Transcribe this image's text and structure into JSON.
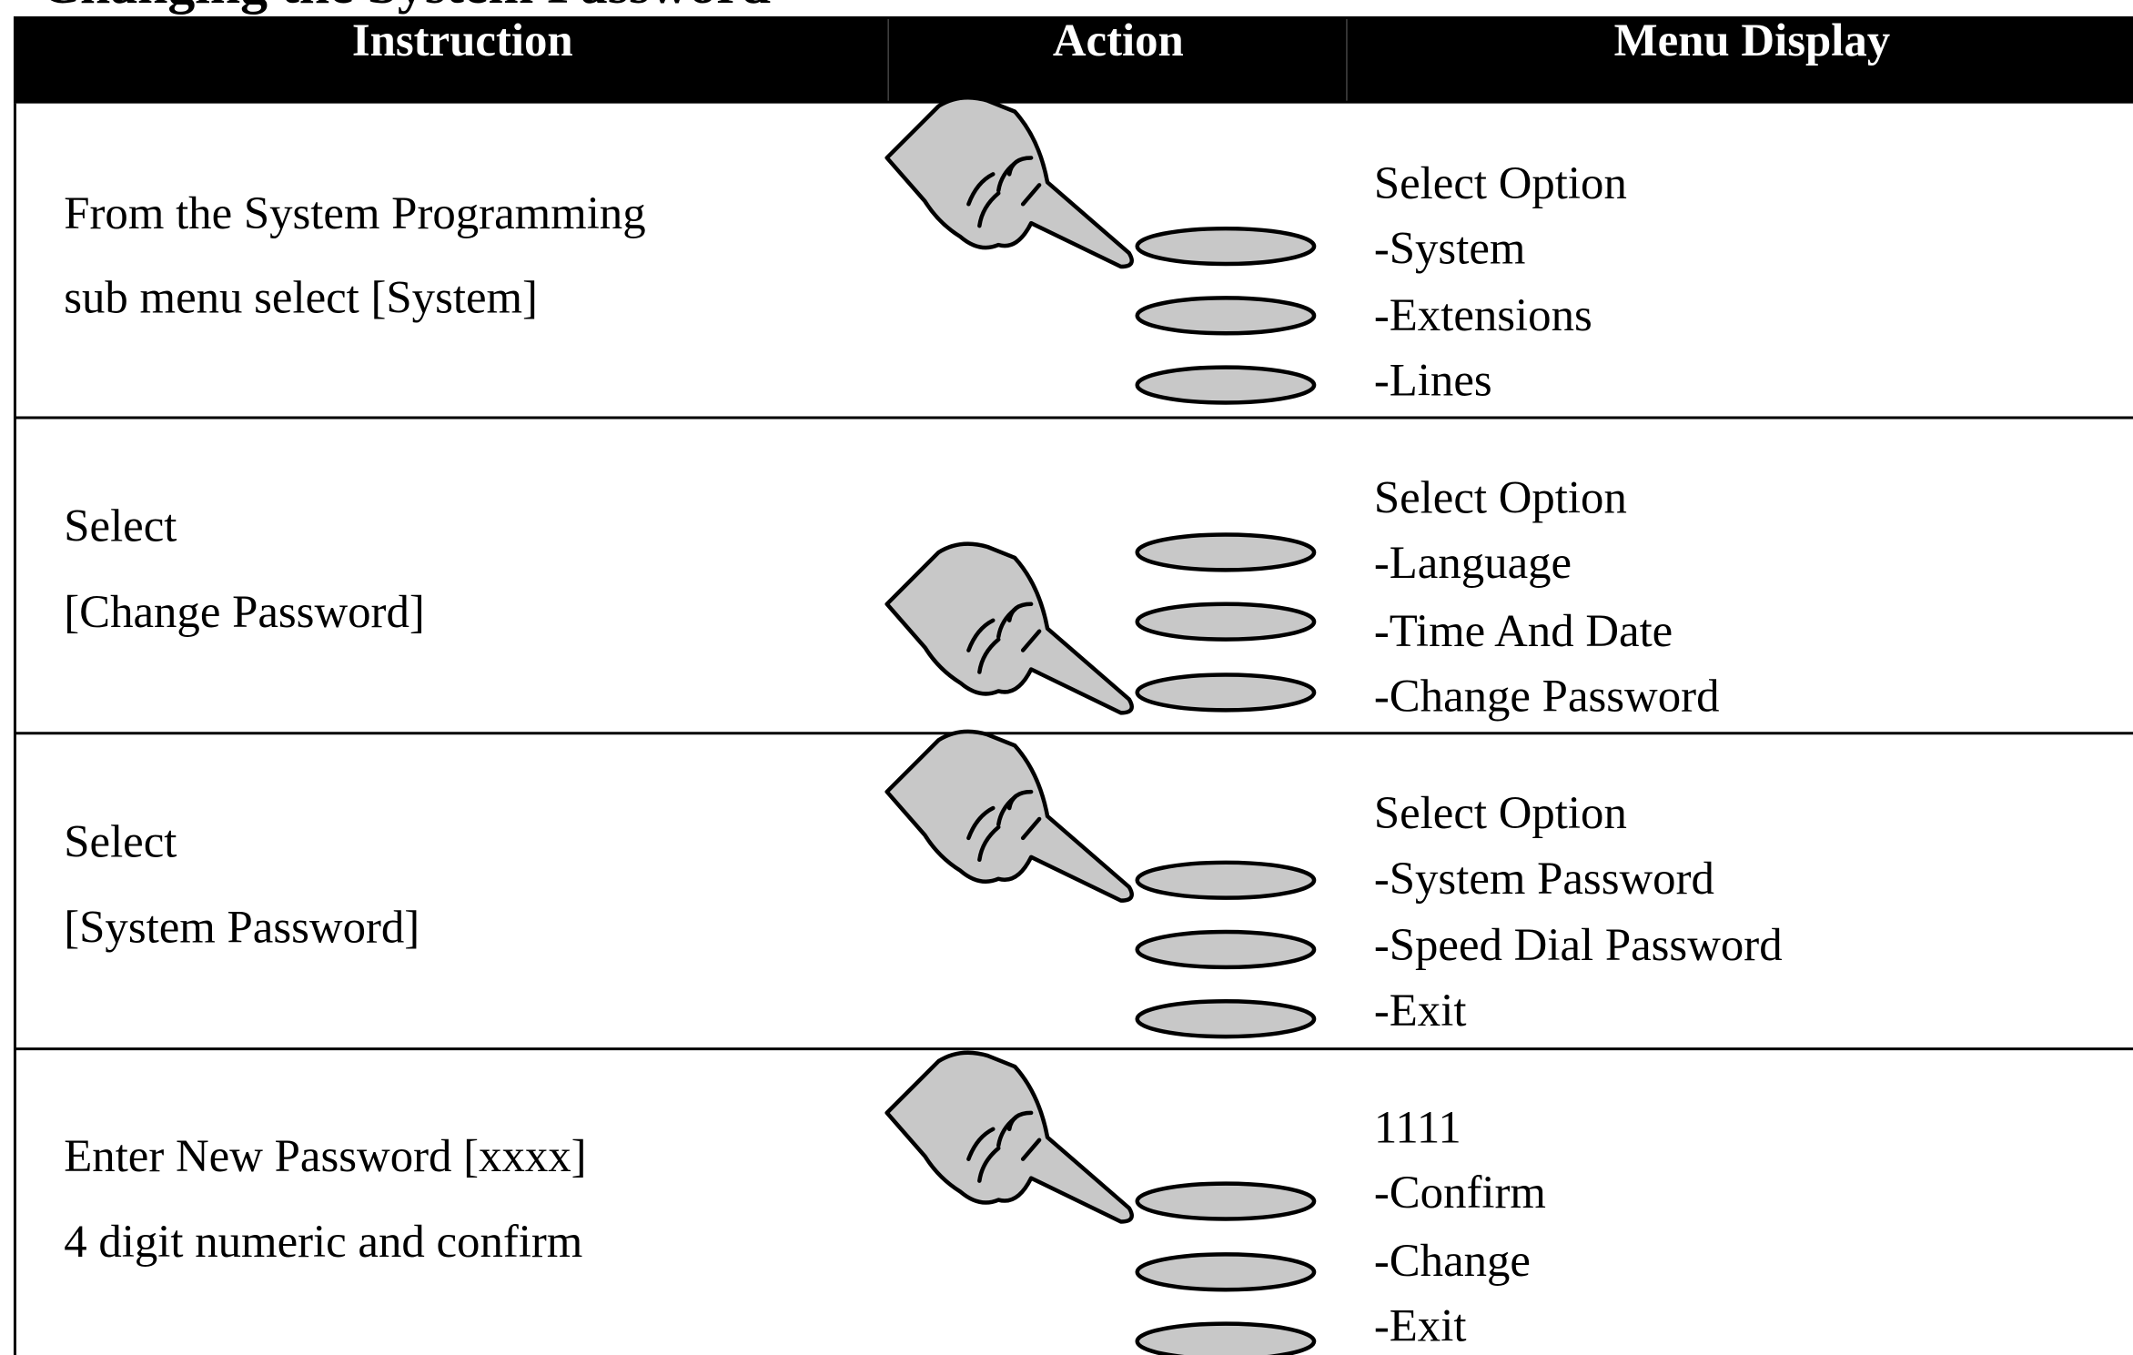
{
  "title": "Changing the System Password",
  "headers": [
    "Instruction",
    "Action",
    "Menu Display"
  ],
  "rows": [
    {
      "instruction": [
        "From the System Programming",
        "sub menu select [System]"
      ],
      "menu": [
        "Select Option",
        "-System",
        "-Extensions",
        "-Lines"
      ]
    },
    {
      "instruction": [
        "Select",
        "[Change Password]"
      ],
      "menu": [
        "Select Option",
        "-Language",
        "-Time And Date",
        "-Change Password"
      ]
    },
    {
      "instruction": [
        "Select",
        "[System Password]"
      ],
      "menu": [
        "Select Option",
        "-System Password",
        "-Speed Dial Password",
        "-Exit"
      ]
    },
    {
      "instruction": [
        "Enter New Password [xxxx]",
        "4 digit numeric and confirm"
      ],
      "menu": [
        "1111",
        "-Confirm",
        "-Change",
        "-Exit"
      ]
    }
  ]
}
